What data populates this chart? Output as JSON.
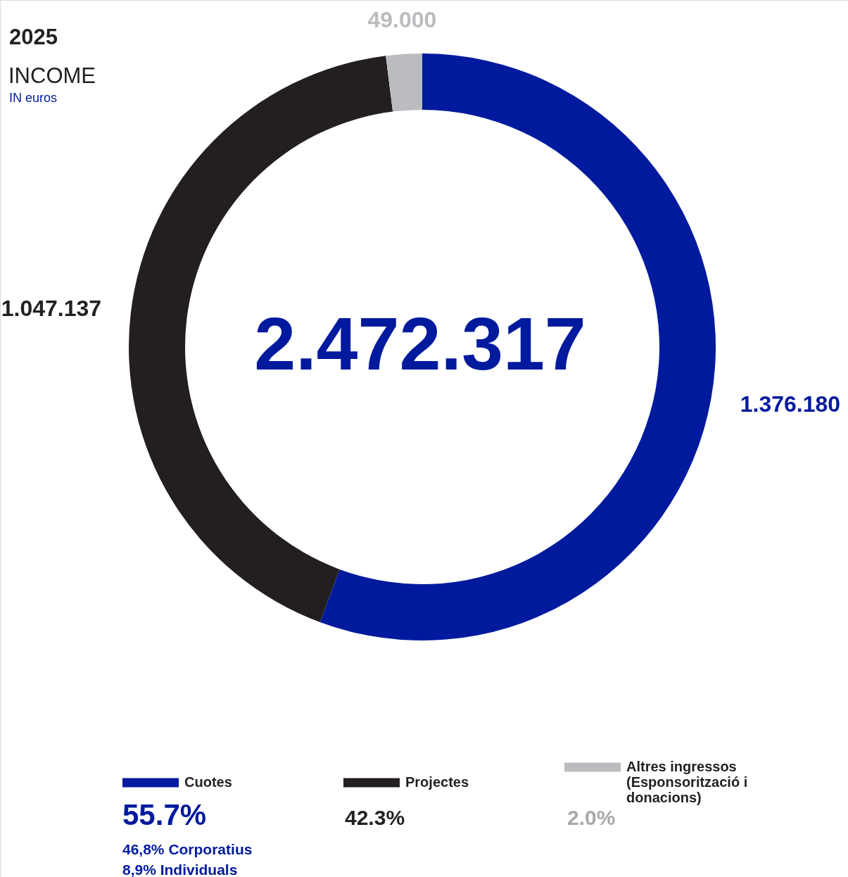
{
  "chart_data": {
    "type": "donut",
    "title": "2025",
    "subtitle": "INCOME",
    "categories": [
      "Cuotes",
      "Projectes",
      "Altres ingressos (Esponsorització i donacions)"
    ],
    "values": [
      1376180,
      1047137,
      49000
    ],
    "colors": [
      "#001a9e",
      "#231f20",
      "#bbbcbf"
    ],
    "value_labels": [
      "1.376.180",
      "1.047.137",
      "49.000"
    ],
    "legend": "bottom",
    "annotations": [
      "IN euros",
      "2.472.317",
      "55.7%",
      "42.3%",
      "2.0%",
      "46,8% Corporatius",
      "8,9% Individuals"
    ]
  }
}
